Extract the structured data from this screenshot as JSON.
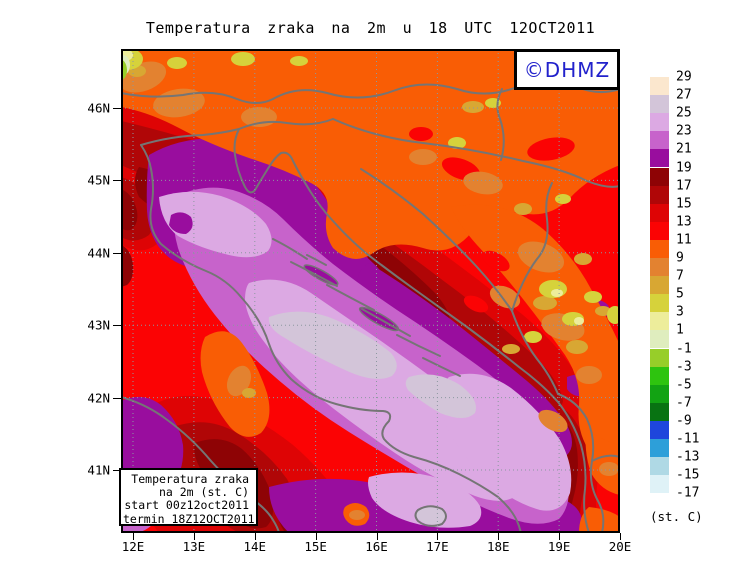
{
  "title": "Temperatura zraka na 2m u 18 UTC 12OCT2011",
  "watermark": {
    "text": "©DHMZ",
    "color": "#2222CC"
  },
  "info_box": {
    "lines": [
      "Temperatura zraka",
      "na 2m (st. C)",
      "start 00z12oct2011",
      "termin 18Z12OCT2011"
    ]
  },
  "axes": {
    "x_tick_labels": [
      "12E",
      "13E",
      "14E",
      "15E",
      "16E",
      "17E",
      "18E",
      "19E",
      "20E"
    ],
    "y_tick_labels": [
      "46N",
      "45N",
      "44N",
      "43N",
      "42N",
      "41N"
    ]
  },
  "legend": {
    "unit_label": "(st. C)",
    "entries": [
      {
        "label": "29",
        "color": "#FBE7CE"
      },
      {
        "label": "27",
        "color": "#D3C5D9"
      },
      {
        "label": "25",
        "color": "#DCA9E3"
      },
      {
        "label": "23",
        "color": "#C763CB"
      },
      {
        "label": "21",
        "color": "#990D9E"
      },
      {
        "label": "19",
        "color": "#8E0305"
      },
      {
        "label": "17",
        "color": "#B00607"
      },
      {
        "label": "15",
        "color": "#DE0405"
      },
      {
        "label": "13",
        "color": "#FB0304"
      },
      {
        "label": "11",
        "color": "#F95D05"
      },
      {
        "label": "9",
        "color": "#E38230"
      },
      {
        "label": "7",
        "color": "#D8A733"
      },
      {
        "label": "5",
        "color": "#D6D23B"
      },
      {
        "label": "3",
        "color": "#EDED9B"
      },
      {
        "label": "1",
        "color": "#DFEDBE"
      },
      {
        "label": "-1",
        "color": "#97CE29"
      },
      {
        "label": "-3",
        "color": "#2EC40F"
      },
      {
        "label": "-5",
        "color": "#12A313"
      },
      {
        "label": "-7",
        "color": "#087312"
      },
      {
        "label": "-9",
        "color": "#1E46DC"
      },
      {
        "label": "-11",
        "color": "#2D9FD9"
      },
      {
        "label": "-13",
        "color": "#AFD9E5"
      },
      {
        "label": "-15",
        "color": "#DFF2F7"
      },
      {
        "label": "-17",
        "color": "#FFFFFF"
      }
    ]
  },
  "map": {
    "coast_color": "#757575",
    "grid_color": "#8C98A0",
    "frame_color": "#000000"
  }
}
